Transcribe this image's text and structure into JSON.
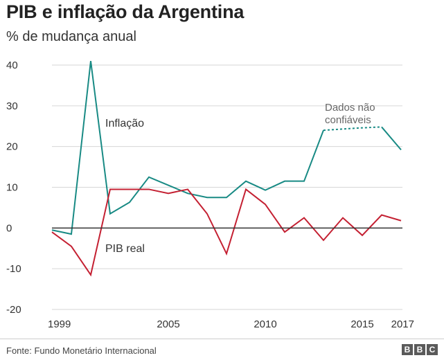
{
  "chart_data": {
    "type": "line",
    "title": "PIB e inflação da Argentina",
    "subtitle": "% de mudança anual",
    "xlabel": "",
    "ylabel": "",
    "ylim": [
      -20,
      40
    ],
    "yticks": [
      40,
      30,
      20,
      10,
      0,
      -10,
      -20
    ],
    "xlim": [
      1999,
      2017
    ],
    "xticks": [
      1999,
      2005,
      2010,
      2015,
      2017
    ],
    "grid": true,
    "x": [
      1999,
      2000,
      2001,
      2002,
      2003,
      2004,
      2005,
      2006,
      2007,
      2008,
      2009,
      2010,
      2011,
      2012,
      2013,
      2014,
      2015,
      2016,
      2017
    ],
    "series": [
      {
        "name": "Inflação",
        "color": "#188a84",
        "values": [
          -0.5,
          -1.5,
          41,
          3.5,
          6.3,
          12.5,
          10.5,
          8.5,
          7.5,
          7.5,
          11.5,
          9.3,
          11.5,
          11.5,
          24,
          24.3,
          24.6,
          24.8,
          19.2
        ],
        "dashed_from": 2013,
        "dashed_to": 2016
      },
      {
        "name": "PIB real",
        "color": "#c42032",
        "values": [
          -1,
          -4.5,
          -11.5,
          9.5,
          9.5,
          9.5,
          8.5,
          9.5,
          3.5,
          -6.3,
          9.5,
          5.8,
          -1,
          2.5,
          -3,
          2.5,
          -1.8,
          3.2,
          1.8
        ]
      }
    ],
    "annotations": [
      {
        "text_line1": "Dados não",
        "text_line2": "confiáveis"
      }
    ]
  },
  "footer": {
    "source": "Fonte: Fundo Monetário Internacional",
    "logo_letters": [
      "B",
      "B",
      "C"
    ]
  }
}
